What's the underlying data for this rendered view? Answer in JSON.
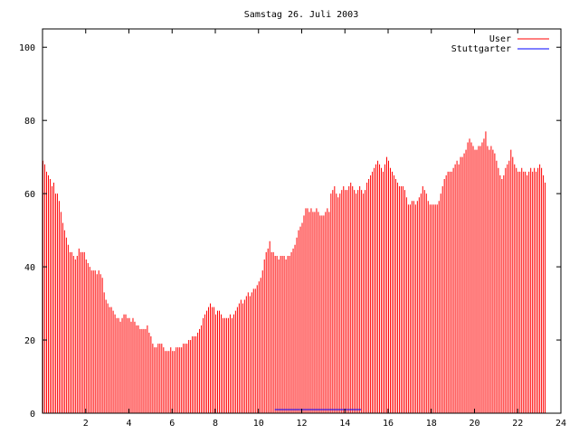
{
  "chart_data": {
    "type": "bar",
    "title": "Samstag 26. Juli 2003",
    "xlabel": "",
    "ylabel": "",
    "xlim": [
      0,
      24
    ],
    "ylim": [
      0,
      105
    ],
    "x_ticks": [
      2,
      4,
      6,
      8,
      10,
      12,
      14,
      16,
      18,
      20,
      22,
      24
    ],
    "x_tick_labels": [
      "2",
      "4",
      "6",
      "8",
      "10",
      "12",
      "14",
      "16",
      "18",
      "20",
      "22",
      "24"
    ],
    "y_ticks": [
      0,
      20,
      40,
      60,
      80,
      100
    ],
    "y_tick_labels": [
      "0",
      "20",
      "40",
      "60",
      "80",
      "100"
    ],
    "grid": false,
    "legend_position": "top-right",
    "interval_minutes": 5,
    "series": [
      {
        "name": "User",
        "color": "#ff0000",
        "values": [
          69,
          68,
          66,
          65,
          64,
          62,
          63,
          60,
          60,
          58,
          55,
          52,
          50,
          48,
          46,
          44,
          44,
          43,
          42,
          43,
          45,
          44,
          44,
          44,
          42,
          41,
          40,
          39,
          39,
          39,
          38,
          39,
          38,
          37,
          33,
          31,
          30,
          29,
          29,
          28,
          27,
          26,
          26,
          25,
          26,
          27,
          27,
          26,
          26,
          25,
          26,
          25,
          24,
          24,
          23,
          23,
          23,
          23,
          24,
          22,
          21,
          19,
          18,
          18,
          19,
          19,
          19,
          18,
          17,
          17,
          17,
          18,
          17,
          17,
          18,
          18,
          18,
          18,
          19,
          19,
          19,
          20,
          20,
          21,
          21,
          21,
          22,
          23,
          24,
          26,
          27,
          28,
          29,
          30,
          29,
          29,
          27,
          28,
          28,
          27,
          26,
          26,
          26,
          26,
          27,
          26,
          27,
          28,
          29,
          30,
          31,
          30,
          31,
          32,
          33,
          32,
          33,
          34,
          34,
          35,
          36,
          37,
          39,
          42,
          44,
          45,
          47,
          44,
          44,
          43,
          43,
          42,
          43,
          43,
          43,
          42,
          43,
          43,
          44,
          45,
          46,
          48,
          50,
          51,
          52,
          54,
          56,
          56,
          55,
          56,
          55,
          55,
          56,
          55,
          54,
          54,
          54,
          55,
          56,
          55,
          60,
          61,
          62,
          60,
          59,
          60,
          61,
          62,
          61,
          61,
          62,
          63,
          62,
          61,
          60,
          61,
          62,
          61,
          60,
          61,
          63,
          64,
          65,
          66,
          67,
          68,
          69,
          68,
          67,
          66,
          68,
          70,
          69,
          67,
          66,
          65,
          64,
          63,
          62,
          62,
          62,
          61,
          59,
          57,
          57,
          58,
          58,
          57,
          58,
          59,
          60,
          62,
          61,
          60,
          58,
          57,
          57,
          57,
          57,
          57,
          58,
          60,
          62,
          64,
          65,
          66,
          66,
          66,
          67,
          68,
          69,
          68,
          70,
          70,
          71,
          72,
          74,
          75,
          74,
          73,
          72,
          72,
          73,
          73,
          74,
          75,
          77,
          73,
          72,
          73,
          72,
          71,
          69,
          67,
          65,
          64,
          65,
          67,
          68,
          69,
          72,
          70,
          68,
          67,
          66,
          66,
          67,
          66,
          66,
          65,
          66,
          67,
          66,
          67,
          66,
          67,
          68,
          67,
          65,
          63
        ]
      },
      {
        "name": "Stuttgarter",
        "color": "#0000ff",
        "values": [
          0,
          0,
          0,
          0,
          0,
          0,
          0,
          0,
          0,
          0,
          0,
          0,
          0,
          0,
          0,
          0,
          0,
          0,
          0,
          0,
          0,
          0,
          0,
          0,
          0,
          0,
          0,
          0,
          0,
          0,
          0,
          0,
          0,
          0,
          0,
          0,
          0,
          0,
          0,
          0,
          0,
          0,
          0,
          0,
          0,
          0,
          0,
          0,
          0,
          0,
          0,
          0,
          0,
          0,
          0,
          0,
          0,
          0,
          0,
          0,
          0,
          0,
          0,
          0,
          0,
          0,
          0,
          0,
          0,
          0,
          0,
          0,
          0,
          0,
          0,
          0,
          0,
          0,
          0,
          0,
          0,
          0,
          0,
          0,
          0,
          0,
          0,
          0,
          0,
          0,
          0,
          0,
          0,
          0,
          0,
          0,
          0,
          0,
          0,
          0,
          0,
          0,
          0,
          0,
          0,
          0,
          0,
          0,
          0,
          0,
          0,
          0,
          0,
          0,
          0,
          0,
          0,
          0,
          0,
          0,
          0,
          0,
          0,
          0,
          0,
          0,
          0,
          0,
          0,
          0,
          0,
          0,
          0,
          0,
          0,
          0,
          0,
          0,
          0,
          0,
          0,
          0,
          0,
          0,
          0,
          0,
          0,
          0,
          0,
          0,
          0,
          0,
          0,
          0,
          0,
          0,
          0,
          0,
          0,
          0,
          0,
          0,
          0,
          0,
          0,
          0,
          0,
          0,
          0,
          0,
          0,
          0,
          0,
          0,
          0,
          0,
          0,
          0,
          0,
          0,
          0,
          0,
          0,
          0,
          0,
          0,
          0,
          0,
          0,
          0,
          0,
          0,
          0,
          0,
          0,
          0,
          0,
          0,
          0,
          0,
          0,
          0,
          0,
          0,
          0,
          0,
          0,
          0,
          0,
          0,
          0,
          0,
          0,
          0,
          0,
          0,
          0,
          0,
          0,
          0,
          0,
          0,
          0,
          0,
          0,
          0,
          0,
          0,
          0,
          0,
          0,
          0,
          0,
          0,
          0,
          0,
          0,
          0,
          0,
          0,
          0,
          0,
          0,
          0,
          0,
          0,
          0,
          0,
          0,
          0,
          0,
          0,
          0,
          0,
          0,
          0,
          0,
          0,
          0,
          0,
          0,
          0,
          0,
          0,
          0,
          0,
          0,
          0,
          0,
          0,
          0,
          0,
          0,
          0,
          0,
          0,
          0,
          0,
          0,
          0
        ],
        "segments": [
          {
            "x_start": 10.75,
            "x_end": 11.9,
            "value": 1
          },
          {
            "x_start": 11.9,
            "x_end": 12.9,
            "value": 1
          },
          {
            "x_start": 12.9,
            "x_end": 14.75,
            "value": 1
          }
        ]
      }
    ]
  }
}
